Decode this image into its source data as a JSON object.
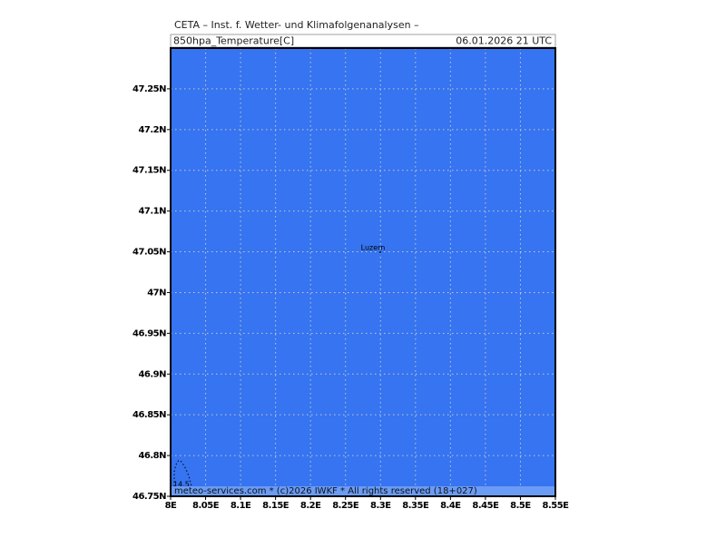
{
  "header": {
    "title": "CETA – Inst. f. Wetter- und Klimafolgenanalysen –",
    "variable": "850hpa_Temperature[C]",
    "valid_time": "06.01.2026 21 UTC"
  },
  "map": {
    "xlim": [
      8,
      8.55
    ],
    "ylim": [
      46.75,
      47.3
    ],
    "xticks": [
      {
        "value": 8,
        "label": "8E"
      },
      {
        "value": 8.05,
        "label": "8.05E"
      },
      {
        "value": 8.1,
        "label": "8.1E"
      },
      {
        "value": 8.15,
        "label": "8.15E"
      },
      {
        "value": 8.2,
        "label": "8.2E"
      },
      {
        "value": 8.25,
        "label": "8.25E"
      },
      {
        "value": 8.3,
        "label": "8.3E"
      },
      {
        "value": 8.35,
        "label": "8.35E"
      },
      {
        "value": 8.4,
        "label": "8.4E"
      },
      {
        "value": 8.45,
        "label": "8.45E"
      },
      {
        "value": 8.5,
        "label": "8.5E"
      },
      {
        "value": 8.55,
        "label": "8.55E"
      }
    ],
    "yticks": [
      {
        "value": 46.75,
        "label": "46.75N"
      },
      {
        "value": 46.8,
        "label": "46.8N"
      },
      {
        "value": 46.85,
        "label": "46.85N"
      },
      {
        "value": 46.9,
        "label": "46.9N"
      },
      {
        "value": 46.95,
        "label": "46.95N"
      },
      {
        "value": 47,
        "label": "47N"
      },
      {
        "value": 47.05,
        "label": "47.05N"
      },
      {
        "value": 47.1,
        "label": "47.1N"
      },
      {
        "value": 47.15,
        "label": "47.15N"
      },
      {
        "value": 47.2,
        "label": "47.2N"
      },
      {
        "value": 47.25,
        "label": "47.25N"
      }
    ],
    "city": "Luzern",
    "contour_label": "14.5",
    "footer": "meteo-services.com * (c)2026 IWKF * All rights reserved (18+027)"
  }
}
